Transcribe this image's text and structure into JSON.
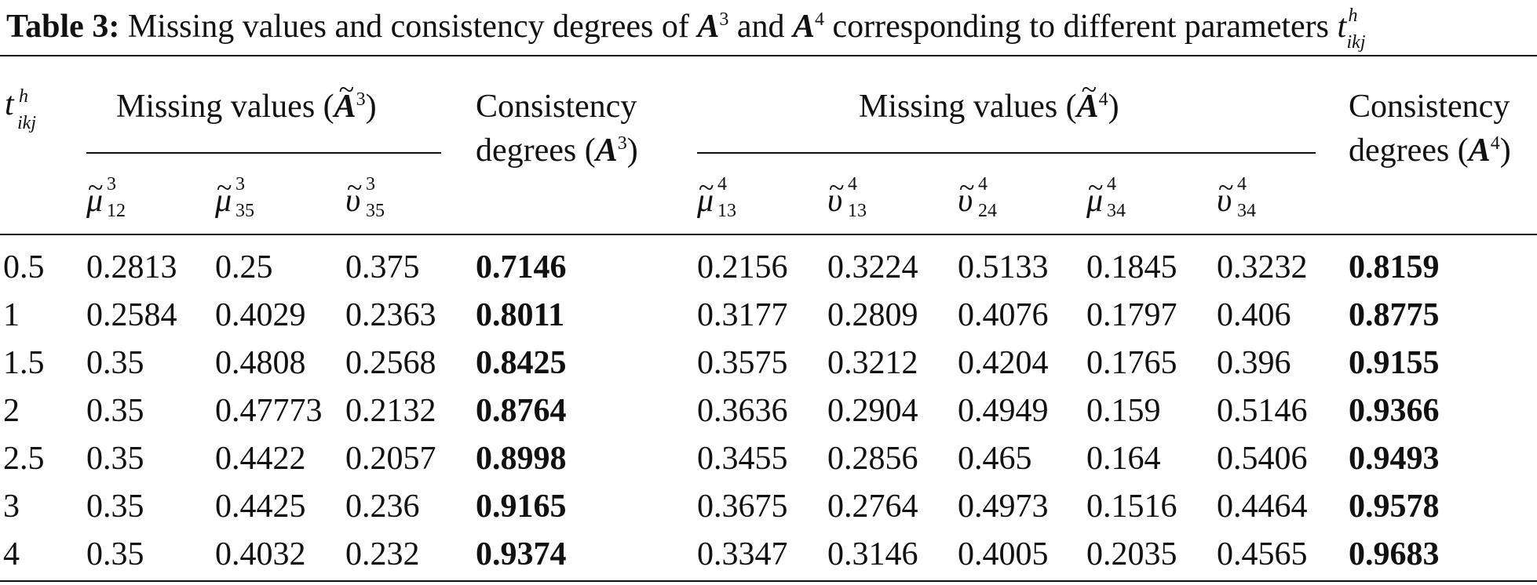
{
  "caption": {
    "label": "Table 3:",
    "text_a": "Missing values and consistency degrees of",
    "A": "A",
    "sup3": "3",
    "and": "and",
    "sup4": "4",
    "text_b": "corresponding to different parameters",
    "t": "t",
    "t_sup": "h",
    "t_sub": "ikj"
  },
  "header": {
    "t_symbol": "t",
    "t_sup": "h",
    "t_sub": "ikj",
    "missing3": "Missing values (",
    "missing3_sup": "3",
    "close": ")",
    "consistency_line1": "Consistency",
    "consistency_line2": "degrees (",
    "consistency3_sup": "3",
    "missing4": "Missing values (",
    "missing4_sup": "4",
    "consistency4_sup": "4",
    "A": "A"
  },
  "subheaders": [
    {
      "sym": "μ",
      "sup": "3",
      "sub": "12"
    },
    {
      "sym": "μ",
      "sup": "3",
      "sub": "35"
    },
    {
      "sym": "υ",
      "sup": "3",
      "sub": "35"
    },
    {
      "sym": "μ",
      "sup": "4",
      "sub": "13"
    },
    {
      "sym": "υ",
      "sup": "4",
      "sub": "13"
    },
    {
      "sym": "υ",
      "sup": "4",
      "sub": "24"
    },
    {
      "sym": "μ",
      "sup": "4",
      "sub": "34"
    },
    {
      "sym": "υ",
      "sup": "4",
      "sub": "34"
    }
  ],
  "rows": [
    [
      "0.5",
      "0.2813",
      "0.25",
      "0.375",
      "0.7146",
      "0.2156",
      "0.3224",
      "0.5133",
      "0.1845",
      "0.3232",
      "0.8159"
    ],
    [
      "1",
      "0.2584",
      "0.4029",
      "0.2363",
      "0.8011",
      "0.3177",
      "0.2809",
      "0.4076",
      "0.1797",
      "0.406",
      "0.8775"
    ],
    [
      "1.5",
      "0.35",
      "0.4808",
      "0.2568",
      "0.8425",
      "0.3575",
      "0.3212",
      "0.4204",
      "0.1765",
      "0.396",
      "0.9155"
    ],
    [
      "2",
      "0.35",
      "0.47773",
      "0.2132",
      "0.8764",
      "0.3636",
      "0.2904",
      "0.4949",
      "0.159",
      "0.5146",
      "0.9366"
    ],
    [
      "2.5",
      "0.35",
      "0.4422",
      "0.2057",
      "0.8998",
      "0.3455",
      "0.2856",
      "0.465",
      "0.164",
      "0.5406",
      "0.9493"
    ],
    [
      "3",
      "0.35",
      "0.4425",
      "0.236",
      "0.9165",
      "0.3675",
      "0.2764",
      "0.4973",
      "0.1516",
      "0.4464",
      "0.9578"
    ],
    [
      "4",
      "0.35",
      "0.4032",
      "0.232",
      "0.9374",
      "0.3347",
      "0.3146",
      "0.4005",
      "0.2035",
      "0.4565",
      "0.9683"
    ]
  ],
  "tilde": "~"
}
